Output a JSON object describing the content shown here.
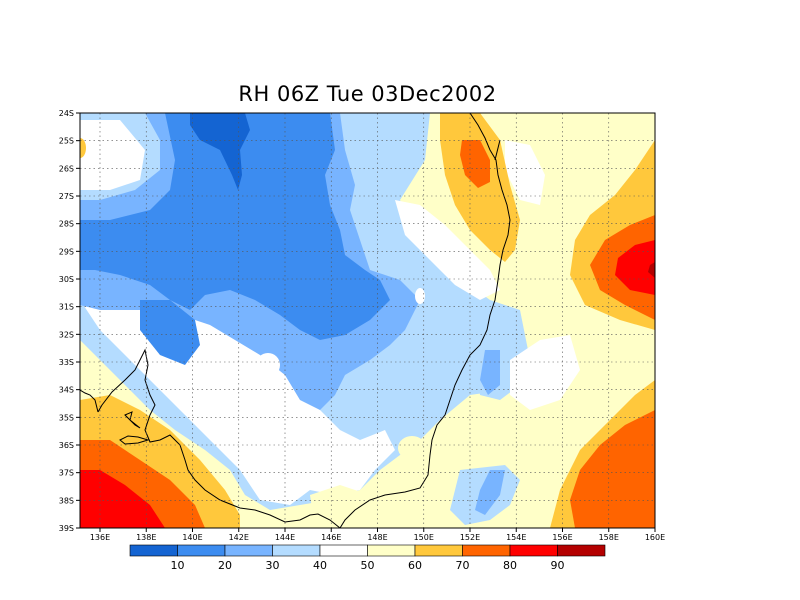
{
  "title": "RH 06Z Tue 03Dec2002",
  "lat_labels": [
    "24S",
    "25S",
    "26S",
    "27S",
    "28S",
    "29S",
    "30S",
    "31S",
    "32S",
    "33S",
    "34S",
    "35S",
    "36S",
    "37S",
    "38S",
    "39S"
  ],
  "lon_labels": [
    "136E",
    "138E",
    "140E",
    "142E",
    "144E",
    "146E",
    "148E",
    "150E",
    "152E",
    "154E",
    "156E",
    "158E",
    "160E"
  ],
  "colorbar": {
    "levels": [
      "10",
      "20",
      "30",
      "40",
      "50",
      "60",
      "70",
      "80",
      "90"
    ],
    "colors": [
      "#1464d2",
      "#3c8cf0",
      "#78b4ff",
      "#b4dcff",
      "#ffffff",
      "#ffffc8",
      "#ffc83c",
      "#ff6400",
      "#ff0000",
      "#b40000"
    ]
  },
  "map_colors": {
    "c0_10": "#1464d2",
    "c10_20": "#3c8cf0",
    "c20_30": "#78b4ff",
    "c30_40": "#b4dcff",
    "c40_50": "#ffffff",
    "c50_60": "#ffffc8",
    "c60_70": "#ffc83c",
    "c70_80": "#ff6400",
    "c80_90": "#ff0000",
    "c90_100": "#b40000"
  }
}
